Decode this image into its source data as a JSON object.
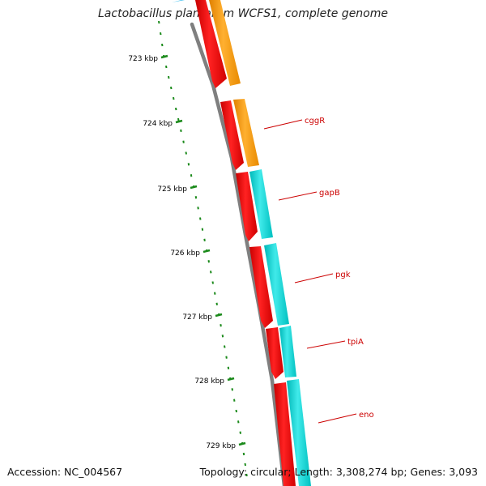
{
  "header": {
    "title": "Lactobacillus plantarum WCFS1, complete genome"
  },
  "footer": {
    "accession": "Accession: NC_004567",
    "summary": "Topology: circular; Length: 3,308,274 bp; Genes: 3,093"
  },
  "colors": {
    "backbone": "#808080",
    "ruler_ticks": "#1b8a1b",
    "cds_forward": "#ff0000",
    "gene_other": "#ff9900",
    "gene_highlight": "#00cccc",
    "gene_start_marker": "#33bbee",
    "gene_label": "#cc0000",
    "kbp_label": "#000000"
  },
  "kbp_labels": [
    "723 kbp",
    "724 kbp",
    "725 kbp",
    "726 kbp",
    "727 kbp",
    "728 kbp",
    "729 kbp"
  ],
  "gene_labels": [
    "cggR",
    "gapB",
    "pgk",
    "tpiA",
    "eno"
  ]
}
